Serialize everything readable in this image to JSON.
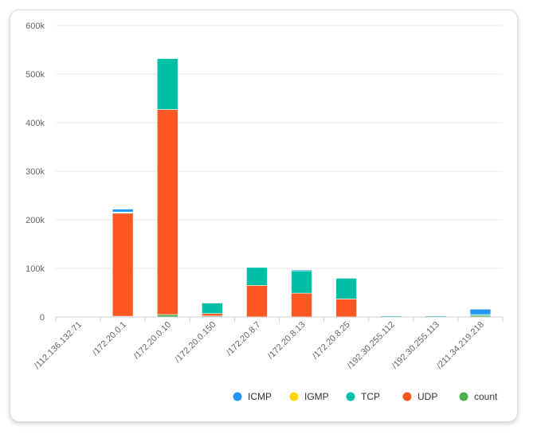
{
  "chart_data": {
    "type": "bar",
    "stacked": true,
    "categories": [
      "/112.136.132.71",
      "/172.20.0.1",
      "/172.20.0.10",
      "/172.20.0.150",
      "/172.20.8.7",
      "/172.20.8.13",
      "/172.20.8.25",
      "/192.30.255.112",
      "/192.30.255.113",
      "/211.34.219.218"
    ],
    "series": [
      {
        "name": "count",
        "color": "#4caf50",
        "values": [
          0,
          1500,
          5000,
          2000,
          0,
          0,
          0,
          0,
          0,
          3000
        ]
      },
      {
        "name": "UDP",
        "color": "#ff5722",
        "values": [
          0,
          212000,
          422000,
          5000,
          65000,
          49000,
          37000,
          0,
          0,
          0
        ]
      },
      {
        "name": "TCP",
        "color": "#00bfa5",
        "values": [
          0,
          1500,
          105000,
          22000,
          37000,
          46000,
          43000,
          2000,
          2000,
          2000
        ]
      },
      {
        "name": "IGMP",
        "color": "#ffd600",
        "values": [
          0,
          1000,
          0,
          0,
          0,
          0,
          0,
          0,
          0,
          0
        ]
      },
      {
        "name": "ICMP",
        "color": "#2196f3",
        "values": [
          0,
          6000,
          1000,
          500,
          0,
          2000,
          500,
          0,
          0,
          11000
        ]
      }
    ],
    "legend_order": [
      "ICMP",
      "IGMP",
      "TCP",
      "UDP",
      "count"
    ],
    "yticks": [
      "0",
      "100k",
      "200k",
      "300k",
      "400k",
      "500k",
      "600k"
    ],
    "ylim": [
      0,
      600000
    ],
    "grid": true,
    "legend_position": "bottom-right"
  }
}
